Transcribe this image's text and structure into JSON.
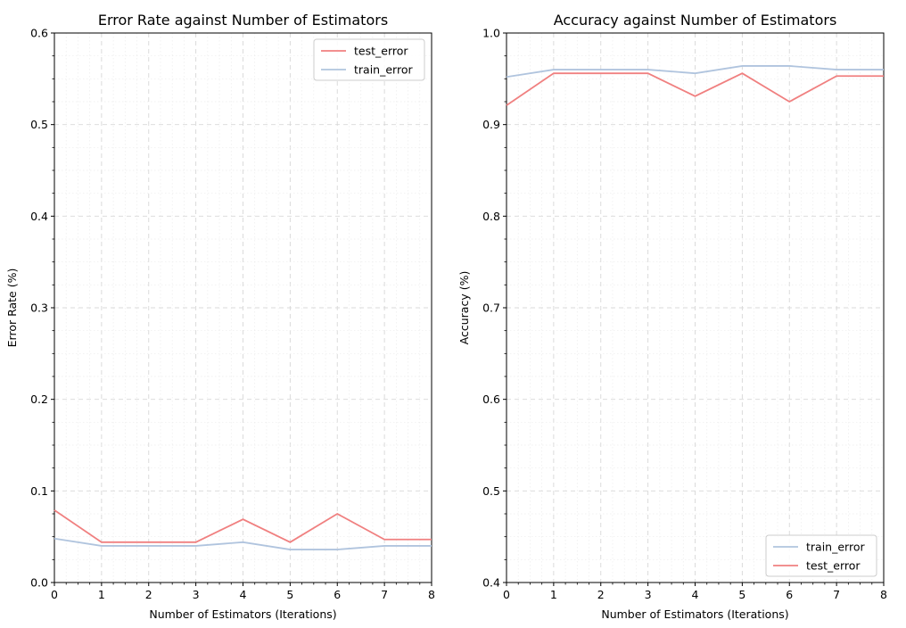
{
  "chart_data": [
    {
      "type": "line",
      "title": "Error Rate against Number of Estimators",
      "xlabel": "Number of Estimators (Iterations)",
      "ylabel": "Error Rate (%)",
      "xlim": [
        0,
        8
      ],
      "ylim": [
        0,
        0.6
      ],
      "xticks": [
        "0",
        "1",
        "2",
        "3",
        "4",
        "5",
        "6",
        "7",
        "8"
      ],
      "yticks": [
        "0.0",
        "0.1",
        "0.2",
        "0.3",
        "0.4",
        "0.5",
        "0.6"
      ],
      "grid": true,
      "legend_position": "upper right",
      "x": [
        0,
        1,
        2,
        3,
        4,
        5,
        6,
        7,
        8
      ],
      "series": [
        {
          "name": "test_error",
          "color": "#f08080",
          "values": [
            0.079,
            0.044,
            0.044,
            0.044,
            0.069,
            0.044,
            0.075,
            0.047,
            0.047
          ]
        },
        {
          "name": "train_error",
          "color": "#b0c4de",
          "values": [
            0.048,
            0.04,
            0.04,
            0.04,
            0.044,
            0.036,
            0.036,
            0.04,
            0.04
          ]
        }
      ]
    },
    {
      "type": "line",
      "title": "Accuracy against Number of Estimators",
      "xlabel": "Number of Estimators (Iterations)",
      "ylabel": "Accuracy (%)",
      "xlim": [
        0,
        8
      ],
      "ylim": [
        0.4,
        1.0
      ],
      "xticks": [
        "0",
        "1",
        "2",
        "3",
        "4",
        "5",
        "6",
        "7",
        "8"
      ],
      "yticks": [
        "0.4",
        "0.5",
        "0.6",
        "0.7",
        "0.8",
        "0.9",
        "1.0"
      ],
      "grid": true,
      "legend_position": "lower right",
      "x": [
        0,
        1,
        2,
        3,
        4,
        5,
        6,
        7,
        8
      ],
      "series": [
        {
          "name": "train_error",
          "color": "#b0c4de",
          "values": [
            0.952,
            0.96,
            0.96,
            0.96,
            0.956,
            0.964,
            0.964,
            0.96,
            0.96
          ]
        },
        {
          "name": "test_error",
          "color": "#f08080",
          "values": [
            0.921,
            0.956,
            0.956,
            0.956,
            0.931,
            0.956,
            0.925,
            0.953,
            0.953
          ]
        }
      ]
    }
  ]
}
